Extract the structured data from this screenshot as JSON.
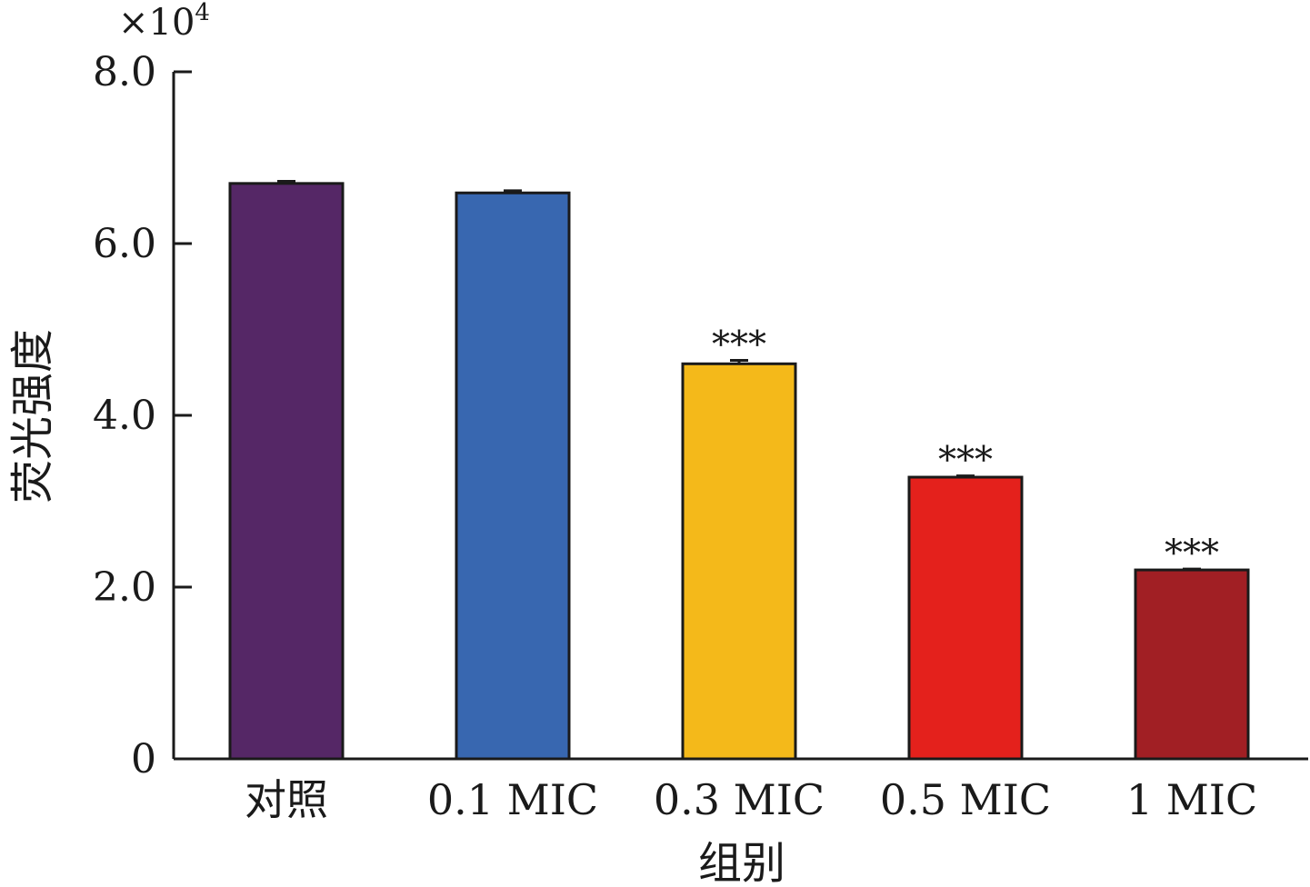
{
  "chart_data": {
    "type": "bar",
    "categories": [
      "对照",
      "0.1 MIC",
      "0.3 MIC",
      "0.5 MIC",
      "1 MIC"
    ],
    "values": [
      67000,
      65900,
      46000,
      32800,
      22000
    ],
    "errors": [
      250,
      250,
      400,
      150,
      100
    ],
    "significance": [
      "",
      "",
      "***",
      "***",
      "***"
    ],
    "bar_colors": [
      "#552766",
      "#3867b0",
      "#f4b91a",
      "#e4211c",
      "#a11f24"
    ],
    "xlabel": "组别",
    "ylabel": "荧光强度",
    "y_multiplier": "×10",
    "y_multiplier_exp": "4",
    "ylim": [
      0,
      80000
    ],
    "yticks": [
      0,
      20000,
      40000,
      60000,
      80000
    ],
    "ytick_labels": [
      "0",
      "2.0",
      "4.0",
      "6.0",
      "8.0"
    ],
    "grid": false,
    "legend": "none"
  }
}
